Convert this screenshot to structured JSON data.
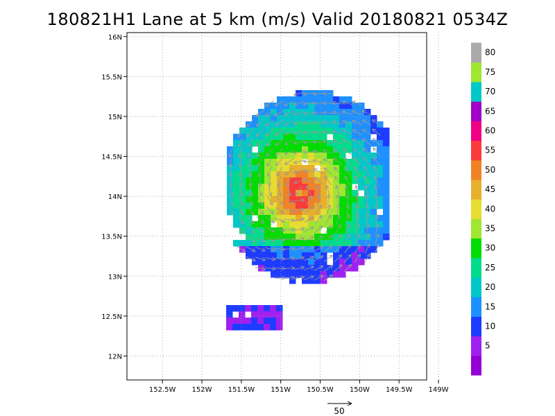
{
  "chart_data": {
    "type": "heatmap",
    "title": "180821H1 Lane at 5 km (m/s) Valid 20180821 0534Z",
    "x_ticks": [
      {
        "value": -152.5,
        "label": "152.5W"
      },
      {
        "value": -152.0,
        "label": "152W"
      },
      {
        "value": -151.5,
        "label": "151.5W"
      },
      {
        "value": -151.0,
        "label": "151W"
      },
      {
        "value": -150.5,
        "label": "150.5W"
      },
      {
        "value": -150.0,
        "label": "150W"
      },
      {
        "value": -149.5,
        "label": "149.5W"
      },
      {
        "value": -149.0,
        "label": "149W"
      }
    ],
    "y_ticks": [
      {
        "value": 12.0,
        "label": "12N"
      },
      {
        "value": 12.5,
        "label": "12.5N"
      },
      {
        "value": 13.0,
        "label": "13N"
      },
      {
        "value": 13.5,
        "label": "13.5N"
      },
      {
        "value": 14.0,
        "label": "14N"
      },
      {
        "value": 14.5,
        "label": "14.5N"
      },
      {
        "value": 15.0,
        "label": "15N"
      },
      {
        "value": 15.5,
        "label": "15.5N"
      },
      {
        "value": 16.0,
        "label": "16N"
      }
    ],
    "xlim": [
      -152.95,
      -149.15
    ],
    "ylim": [
      11.7,
      16.05
    ],
    "grid": true,
    "wind_center": {
      "lon": -150.75,
      "lat": 14.05
    },
    "max_wind_ms": 62,
    "colorbar": {
      "levels": [
        {
          "label": "",
          "color": "#9400d3"
        },
        {
          "label": "5",
          "color": "#a020f0"
        },
        {
          "label": "10",
          "color": "#1e3cff"
        },
        {
          "label": "15",
          "color": "#1e90ff"
        },
        {
          "label": "20",
          "color": "#00c8c8"
        },
        {
          "label": "25",
          "color": "#00dc8c"
        },
        {
          "label": "30",
          "color": "#00dc00"
        },
        {
          "label": "35",
          "color": "#a0e632"
        },
        {
          "label": "40",
          "color": "#e6dc32"
        },
        {
          "label": "45",
          "color": "#e6af2d"
        },
        {
          "label": "50",
          "color": "#f08228"
        },
        {
          "label": "55",
          "color": "#fa3c3c"
        },
        {
          "label": "60",
          "color": "#f00082"
        },
        {
          "label": "65",
          "color": "#a000c8"
        },
        {
          "label": "70",
          "color": "#00c8c8"
        },
        {
          "label": "75",
          "color": "#a0e632"
        },
        {
          "label": "80",
          "color": "#aaaaaa"
        }
      ]
    },
    "reference_vector": {
      "label": "50"
    }
  }
}
